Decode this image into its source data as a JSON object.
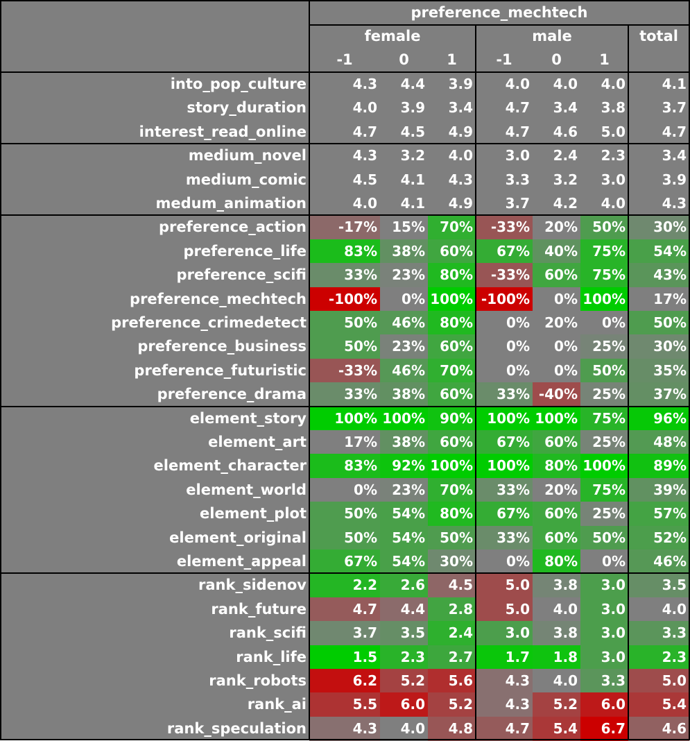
{
  "chart_data": {
    "type": "heatmap",
    "title": "preference_mechtech",
    "column_groups": [
      {
        "label": "female",
        "columns": [
          "-1",
          "0",
          "1"
        ]
      },
      {
        "label": "male",
        "columns": [
          "-1",
          "0",
          "1"
        ]
      },
      {
        "label": "total",
        "columns": [
          ""
        ]
      }
    ],
    "row_groups": [
      {
        "kind": "num",
        "rows": [
          {
            "label": "into_pop_culture",
            "values": [
              "4.3",
              "4.4",
              "3.9",
              "4.0",
              "4.0",
              "4.0",
              "4.1"
            ]
          },
          {
            "label": "story_duration",
            "values": [
              "4.0",
              "3.9",
              "3.4",
              "4.7",
              "3.4",
              "3.8",
              "3.7"
            ]
          },
          {
            "label": "interest_read_online",
            "values": [
              "4.7",
              "4.5",
              "4.9",
              "4.7",
              "4.6",
              "5.0",
              "4.7"
            ]
          }
        ]
      },
      {
        "kind": "num",
        "rows": [
          {
            "label": "medium_novel",
            "values": [
              "4.3",
              "3.2",
              "4.0",
              "3.0",
              "2.4",
              "2.3",
              "3.4"
            ]
          },
          {
            "label": "medium_comic",
            "values": [
              "4.5",
              "4.1",
              "4.3",
              "3.3",
              "3.2",
              "3.0",
              "3.9"
            ]
          },
          {
            "label": "medum_animation",
            "values": [
              "4.0",
              "4.1",
              "4.9",
              "3.7",
              "4.2",
              "4.0",
              "4.3"
            ]
          }
        ]
      },
      {
        "kind": "pct",
        "rows": [
          {
            "label": "preference_action",
            "values": [
              "-17%",
              "15%",
              "70%",
              "-33%",
              "20%",
              "50%",
              "30%"
            ]
          },
          {
            "label": "preference_life",
            "values": [
              "83%",
              "38%",
              "60%",
              "67%",
              "40%",
              "75%",
              "54%"
            ]
          },
          {
            "label": "preference_scifi",
            "values": [
              "33%",
              "23%",
              "80%",
              "-33%",
              "60%",
              "75%",
              "43%"
            ]
          },
          {
            "label": "preference_mechtech",
            "values": [
              "-100%",
              "0%",
              "100%",
              "-100%",
              "0%",
              "100%",
              "17%"
            ]
          },
          {
            "label": "preference_crimedetect",
            "values": [
              "50%",
              "46%",
              "80%",
              "0%",
              "20%",
              "0%",
              "50%"
            ]
          },
          {
            "label": "preference_business",
            "values": [
              "50%",
              "23%",
              "60%",
              "0%",
              "0%",
              "25%",
              "30%"
            ]
          },
          {
            "label": "preference_futuristic",
            "values": [
              "-33%",
              "46%",
              "70%",
              "0%",
              "0%",
              "50%",
              "35%"
            ]
          },
          {
            "label": "preference_drama",
            "values": [
              "33%",
              "38%",
              "60%",
              "33%",
              "-40%",
              "25%",
              "37%"
            ]
          }
        ]
      },
      {
        "kind": "pct",
        "rows": [
          {
            "label": "element_story",
            "values": [
              "100%",
              "100%",
              "90%",
              "100%",
              "100%",
              "75%",
              "96%"
            ]
          },
          {
            "label": "element_art",
            "values": [
              "17%",
              "38%",
              "60%",
              "67%",
              "60%",
              "25%",
              "48%"
            ]
          },
          {
            "label": "element_character",
            "values": [
              "83%",
              "92%",
              "100%",
              "100%",
              "80%",
              "100%",
              "89%"
            ]
          },
          {
            "label": "element_world",
            "values": [
              "0%",
              "23%",
              "70%",
              "33%",
              "20%",
              "75%",
              "39%"
            ]
          },
          {
            "label": "element_plot",
            "values": [
              "50%",
              "54%",
              "80%",
              "67%",
              "60%",
              "25%",
              "57%"
            ]
          },
          {
            "label": "element_original",
            "values": [
              "50%",
              "54%",
              "50%",
              "33%",
              "60%",
              "50%",
              "52%"
            ]
          },
          {
            "label": "element_appeal",
            "values": [
              "67%",
              "54%",
              "30%",
              "0%",
              "80%",
              "0%",
              "46%"
            ]
          }
        ]
      },
      {
        "kind": "rank",
        "rows": [
          {
            "label": "rank_sidenov",
            "values": [
              "2.2",
              "2.6",
              "4.5",
              "5.0",
              "3.8",
              "3.0",
              "3.5"
            ]
          },
          {
            "label": "rank_future",
            "values": [
              "4.7",
              "4.4",
              "2.8",
              "5.0",
              "4.0",
              "3.0",
              "4.0"
            ]
          },
          {
            "label": "rank_scifi",
            "values": [
              "3.7",
              "3.5",
              "2.4",
              "3.0",
              "3.8",
              "3.0",
              "3.3"
            ]
          },
          {
            "label": "rank_life",
            "values": [
              "1.5",
              "2.3",
              "2.7",
              "1.7",
              "1.8",
              "3.0",
              "2.3"
            ]
          },
          {
            "label": "rank_robots",
            "values": [
              "6.2",
              "5.2",
              "5.6",
              "4.3",
              "4.0",
              "3.3",
              "5.0"
            ]
          },
          {
            "label": "rank_ai",
            "values": [
              "5.5",
              "6.0",
              "5.2",
              "4.3",
              "5.2",
              "6.0",
              "5.4"
            ]
          },
          {
            "label": "rank_speculation",
            "values": [
              "4.3",
              "4.0",
              "4.8",
              "4.7",
              "5.4",
              "6.7",
              "4.6"
            ]
          }
        ]
      }
    ],
    "colors": {
      "neutral": "#7f7f7f",
      "positive": "#00cc00",
      "negative": "#cc0000",
      "lines": "#000000",
      "text": "#ffffff"
    }
  }
}
